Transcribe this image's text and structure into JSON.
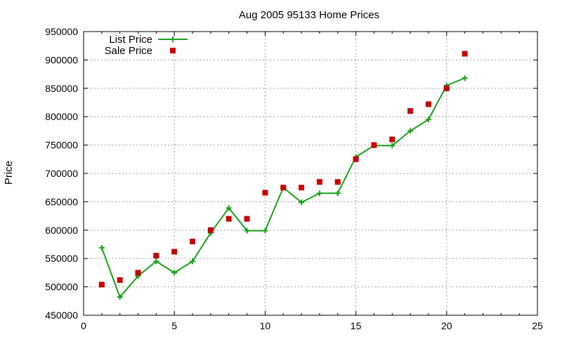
{
  "chart_data": {
    "type": "line",
    "title": "Aug 2005 95133 Home Prices",
    "xlabel": "",
    "ylabel": "Price",
    "xlim": [
      0,
      25
    ],
    "ylim": [
      450000,
      950000
    ],
    "xticks": [
      0,
      5,
      10,
      15,
      20,
      25
    ],
    "yticks": [
      450000,
      500000,
      550000,
      600000,
      650000,
      700000,
      750000,
      800000,
      850000,
      900000,
      950000
    ],
    "grid": true,
    "legend": "top-left",
    "colors": {
      "list": "#1aa01a",
      "sale": "#c80000"
    },
    "series": [
      {
        "name": "List Price",
        "style": "line-points",
        "x": [
          1,
          2,
          3,
          4,
          5,
          6,
          7,
          8,
          9,
          10,
          11,
          12,
          13,
          14,
          15,
          16,
          17,
          18,
          19,
          20,
          21
        ],
        "y": [
          569000,
          482000,
          519000,
          545000,
          525000,
          545000,
          595000,
          639000,
          599000,
          599000,
          675000,
          649000,
          665000,
          665000,
          729000,
          749000,
          749000,
          775000,
          795000,
          855000,
          868000
        ]
      },
      {
        "name": "Sale Price",
        "style": "points",
        "x": [
          1,
          2,
          3,
          4,
          5,
          6,
          7,
          8,
          9,
          10,
          11,
          12,
          13,
          14,
          15,
          16,
          17,
          18,
          19,
          20,
          21
        ],
        "y": [
          504000,
          512000,
          525000,
          555000,
          562000,
          580000,
          600000,
          620000,
          620000,
          666000,
          675000,
          675000,
          685000,
          685000,
          725000,
          750000,
          760000,
          810000,
          822000,
          850000,
          911000
        ]
      }
    ]
  }
}
